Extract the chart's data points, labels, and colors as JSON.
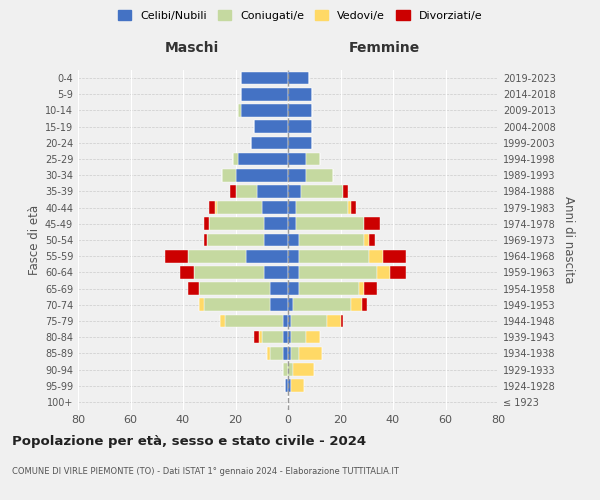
{
  "age_groups": [
    "100+",
    "95-99",
    "90-94",
    "85-89",
    "80-84",
    "75-79",
    "70-74",
    "65-69",
    "60-64",
    "55-59",
    "50-54",
    "45-49",
    "40-44",
    "35-39",
    "30-34",
    "25-29",
    "20-24",
    "15-19",
    "10-14",
    "5-9",
    "0-4"
  ],
  "birth_years": [
    "≤ 1923",
    "1924-1928",
    "1929-1933",
    "1934-1938",
    "1939-1943",
    "1944-1948",
    "1949-1953",
    "1954-1958",
    "1959-1963",
    "1964-1968",
    "1969-1973",
    "1974-1978",
    "1979-1983",
    "1984-1988",
    "1989-1993",
    "1994-1998",
    "1999-2003",
    "2004-2008",
    "2009-2013",
    "2014-2018",
    "2019-2023"
  ],
  "colors": {
    "celibe": "#4472C4",
    "coniugato": "#c5d9a0",
    "vedovo": "#FFD966",
    "divorziato": "#CC0000"
  },
  "maschi": {
    "celibe": [
      0,
      1,
      0,
      2,
      2,
      2,
      7,
      7,
      9,
      16,
      9,
      9,
      10,
      12,
      20,
      19,
      14,
      13,
      18,
      18,
      18
    ],
    "coniugato": [
      0,
      0,
      2,
      5,
      8,
      22,
      25,
      27,
      27,
      22,
      22,
      21,
      17,
      8,
      5,
      2,
      0,
      0,
      1,
      0,
      0
    ],
    "vedovo": [
      0,
      0,
      0,
      1,
      1,
      2,
      2,
      0,
      0,
      0,
      0,
      0,
      1,
      0,
      0,
      0,
      0,
      0,
      0,
      0,
      0
    ],
    "divorziato": [
      0,
      0,
      0,
      0,
      2,
      0,
      0,
      4,
      5,
      9,
      1,
      2,
      2,
      2,
      0,
      0,
      0,
      0,
      0,
      0,
      0
    ]
  },
  "femmine": {
    "nubile": [
      0,
      1,
      0,
      1,
      1,
      1,
      2,
      4,
      4,
      4,
      4,
      3,
      3,
      5,
      7,
      7,
      9,
      9,
      9,
      9,
      8
    ],
    "coniugata": [
      0,
      0,
      2,
      3,
      6,
      14,
      22,
      23,
      30,
      27,
      25,
      26,
      20,
      16,
      10,
      5,
      0,
      0,
      0,
      0,
      0
    ],
    "vedova": [
      0,
      5,
      8,
      9,
      5,
      5,
      4,
      2,
      5,
      5,
      2,
      0,
      1,
      0,
      0,
      0,
      0,
      0,
      0,
      0,
      0
    ],
    "divorziata": [
      0,
      0,
      0,
      0,
      0,
      1,
      2,
      5,
      6,
      9,
      2,
      6,
      2,
      2,
      0,
      0,
      0,
      0,
      0,
      0,
      0
    ]
  },
  "xlim": 80,
  "title": "Popolazione per età, sesso e stato civile - 2024",
  "subtitle": "COMUNE DI VIRLE PIEMONTE (TO) - Dati ISTAT 1° gennaio 2024 - Elaborazione TUTTITALIA.IT",
  "xlabel_left": "Maschi",
  "xlabel_right": "Femmine",
  "ylabel_left": "Fasce di età",
  "ylabel_right": "Anni di nascita",
  "legend_labels": [
    "Celibi/Nubili",
    "Coniugati/e",
    "Vedovi/e",
    "Divorziati/e"
  ],
  "background_color": "#f0f0f0"
}
